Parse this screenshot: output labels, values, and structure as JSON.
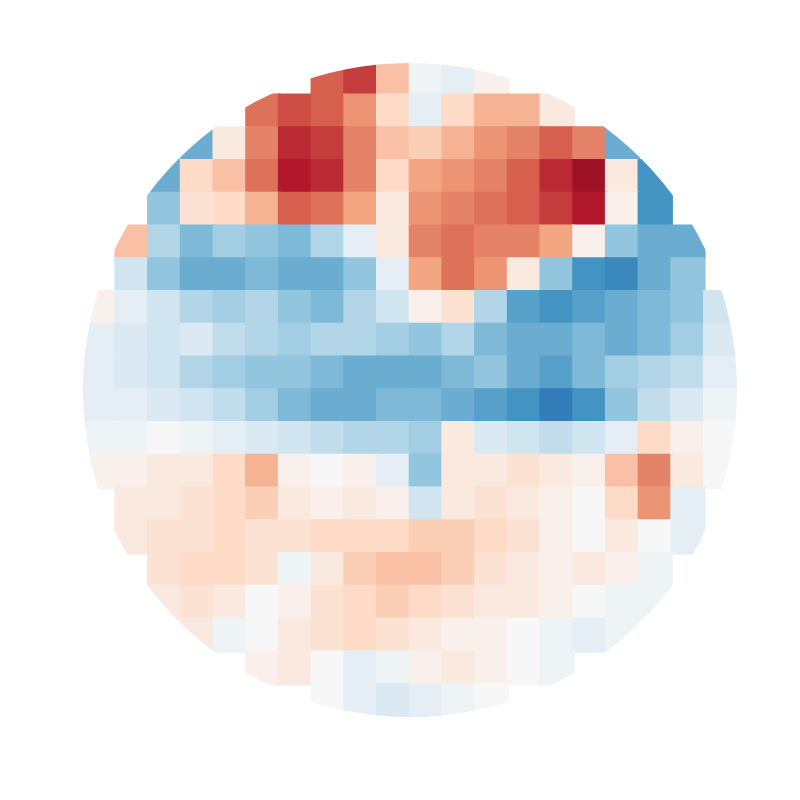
{
  "chart_data": {
    "type": "heatmap",
    "xlim": [
      -1,
      1
    ],
    "ylim": [
      -1,
      1
    ],
    "grid": false,
    "tick_labels": false,
    "color_range": [
      -1,
      1
    ],
    "cells": [
      [
        null,
        null,
        null,
        null,
        null,
        null,
        null,
        0.6,
        0.7,
        0.3,
        -0.05,
        -0.1,
        0.05,
        null,
        null,
        null,
        null,
        null,
        null,
        null
      ],
      [
        null,
        null,
        null,
        null,
        null,
        0.55,
        0.65,
        0.6,
        0.45,
        0.2,
        -0.1,
        0.2,
        0.35,
        0.35,
        0.1,
        null,
        null,
        null,
        null,
        null
      ],
      [
        null,
        null,
        null,
        -0.5,
        0.1,
        0.5,
        0.75,
        0.7,
        0.5,
        0.3,
        0.25,
        0.35,
        0.45,
        0.5,
        0.6,
        0.5,
        -0.5,
        null,
        null,
        null
      ],
      [
        null,
        null,
        -0.5,
        0.2,
        0.3,
        0.55,
        0.8,
        0.75,
        0.5,
        0.2,
        0.4,
        0.45,
        0.5,
        0.6,
        0.75,
        0.85,
        0.1,
        -0.6,
        null,
        null
      ],
      [
        null,
        null,
        -0.4,
        0.15,
        0.2,
        0.35,
        0.6,
        0.55,
        0.4,
        0.1,
        0.45,
        0.5,
        0.55,
        0.6,
        0.7,
        0.8,
        0.05,
        -0.6,
        null,
        null
      ],
      [
        null,
        0.3,
        -0.3,
        -0.45,
        -0.35,
        -0.4,
        -0.45,
        -0.3,
        -0.1,
        0.1,
        0.5,
        0.55,
        0.5,
        0.5,
        0.4,
        0.05,
        -0.4,
        -0.5,
        -0.5,
        null
      ],
      [
        null,
        -0.2,
        -0.4,
        -0.5,
        -0.5,
        -0.45,
        -0.5,
        -0.5,
        -0.4,
        -0.1,
        0.4,
        0.55,
        0.45,
        0.1,
        -0.4,
        -0.6,
        -0.65,
        -0.5,
        -0.4,
        null
      ],
      [
        0.05,
        -0.1,
        -0.2,
        -0.3,
        -0.35,
        -0.3,
        -0.4,
        -0.45,
        -0.3,
        -0.2,
        0.05,
        0.15,
        -0.3,
        -0.55,
        -0.6,
        -0.55,
        -0.5,
        -0.45,
        -0.4,
        -0.2
      ],
      [
        -0.1,
        -0.15,
        -0.2,
        -0.15,
        -0.25,
        -0.3,
        -0.35,
        -0.3,
        -0.3,
        -0.35,
        -0.4,
        -0.3,
        -0.45,
        -0.5,
        -0.5,
        -0.45,
        -0.5,
        -0.45,
        -0.35,
        -0.15
      ],
      [
        -0.1,
        -0.15,
        -0.2,
        -0.3,
        -0.35,
        -0.4,
        -0.4,
        -0.45,
        -0.5,
        -0.5,
        -0.5,
        -0.45,
        -0.4,
        -0.5,
        -0.55,
        -0.45,
        -0.35,
        -0.3,
        -0.25,
        -0.1
      ],
      [
        -0.1,
        -0.1,
        -0.15,
        -0.2,
        -0.25,
        -0.35,
        -0.45,
        -0.5,
        -0.5,
        -0.45,
        -0.45,
        -0.5,
        -0.55,
        -0.6,
        -0.7,
        -0.6,
        -0.4,
        -0.25,
        -0.15,
        -0.05
      ],
      [
        -0.05,
        -0.05,
        0,
        -0.05,
        -0.1,
        -0.15,
        -0.2,
        -0.25,
        -0.3,
        -0.3,
        -0.35,
        0.1,
        -0.15,
        -0.2,
        -0.25,
        -0.2,
        -0.1,
        0.2,
        0.05,
        0
      ],
      [
        0.05,
        0.05,
        0.1,
        0.1,
        0.2,
        0.35,
        0.05,
        0,
        0.05,
        -0.1,
        -0.4,
        0.1,
        0.1,
        0.15,
        0.1,
        0.05,
        0.3,
        0.5,
        0.1,
        0
      ],
      [
        null,
        0.1,
        0.1,
        0.15,
        0.2,
        0.25,
        0.1,
        0.05,
        0.1,
        0.05,
        -0.2,
        0.1,
        0.15,
        0.1,
        0.05,
        0,
        0.2,
        0.45,
        -0.1,
        null
      ],
      [
        null,
        0.1,
        0.15,
        0.15,
        0.2,
        0.15,
        0.15,
        0.2,
        0.2,
        0.2,
        0.25,
        0.25,
        0.2,
        0.15,
        0.05,
        0,
        0.1,
        0,
        -0.1,
        null
      ],
      [
        null,
        null,
        0.15,
        0.2,
        0.2,
        0.15,
        -0.05,
        0.1,
        0.25,
        0.3,
        0.3,
        0.25,
        0.15,
        0.1,
        0.05,
        0.1,
        0.05,
        -0.05,
        null,
        null
      ],
      [
        null,
        null,
        0.1,
        0.15,
        0.1,
        0,
        0.05,
        0.15,
        0.2,
        0.25,
        0.2,
        0.15,
        0.1,
        0.1,
        0.05,
        0,
        -0.05,
        -0.05,
        null,
        null
      ],
      [
        null,
        null,
        null,
        0.1,
        -0.05,
        0,
        0.1,
        0.15,
        0.2,
        0.15,
        0.1,
        0.05,
        0.05,
        0,
        -0.05,
        -0.1,
        -0.05,
        null,
        null,
        null
      ],
      [
        null,
        null,
        null,
        null,
        null,
        0.05,
        0.1,
        0,
        -0.1,
        -0.05,
        0.05,
        0.1,
        0.05,
        0,
        -0.05,
        null,
        null,
        null,
        null,
        null
      ],
      [
        null,
        null,
        null,
        null,
        null,
        null,
        null,
        0,
        -0.1,
        -0.15,
        -0.1,
        -0.05,
        0,
        null,
        null,
        null,
        null,
        null,
        null,
        null
      ]
    ]
  }
}
